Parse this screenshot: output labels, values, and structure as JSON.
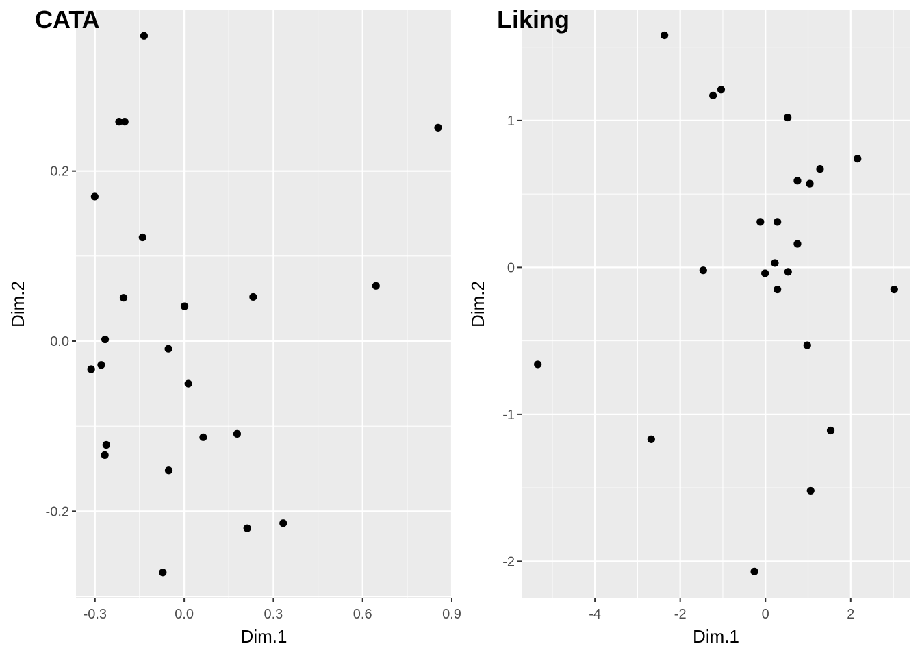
{
  "chart_data": [
    {
      "type": "scatter",
      "title": "CATA",
      "xlabel": "Dim.1",
      "ylabel": "Dim.2",
      "xlim": [
        -0.364,
        0.9
      ],
      "ylim": [
        -0.302,
        0.389
      ],
      "xticks": [
        "-0.3",
        "0.0",
        "0.3",
        "0.6",
        "0.9"
      ],
      "yticks": [
        "-0.2",
        "0.0",
        "0.2"
      ],
      "grid": true,
      "point_color": "#000000",
      "panel_background": "#ebebeb",
      "points": [
        {
          "x": -0.135,
          "y": 0.359
        },
        {
          "x": -0.219,
          "y": 0.258
        },
        {
          "x": -0.2,
          "y": 0.258
        },
        {
          "x": 0.854,
          "y": 0.251
        },
        {
          "x": -0.301,
          "y": 0.17
        },
        {
          "x": -0.14,
          "y": 0.122
        },
        {
          "x": 0.645,
          "y": 0.065
        },
        {
          "x": -0.204,
          "y": 0.051
        },
        {
          "x": 0.232,
          "y": 0.052
        },
        {
          "x": 0.001,
          "y": 0.041
        },
        {
          "x": -0.266,
          "y": 0.002
        },
        {
          "x": -0.053,
          "y": -0.009
        },
        {
          "x": -0.279,
          "y": -0.028
        },
        {
          "x": -0.313,
          "y": -0.033
        },
        {
          "x": 0.014,
          "y": -0.05
        },
        {
          "x": 0.064,
          "y": -0.113
        },
        {
          "x": 0.178,
          "y": -0.109
        },
        {
          "x": -0.262,
          "y": -0.122
        },
        {
          "x": -0.267,
          "y": -0.134
        },
        {
          "x": -0.052,
          "y": -0.152
        },
        {
          "x": 0.212,
          "y": -0.22
        },
        {
          "x": 0.333,
          "y": -0.214
        },
        {
          "x": -0.072,
          "y": -0.272
        }
      ]
    },
    {
      "type": "scatter",
      "title": "Liking",
      "xlabel": "Dim.1",
      "ylabel": "Dim.2",
      "xlim": [
        -5.72,
        3.4
      ],
      "ylim": [
        -2.25,
        1.75
      ],
      "xticks": [
        "-4",
        "-2",
        "0",
        "2"
      ],
      "yticks": [
        "-2",
        "-1",
        "0",
        "1"
      ],
      "grid": true,
      "point_color": "#000000",
      "panel_background": "#ebebeb",
      "points": [
        {
          "x": -2.37,
          "y": 1.58
        },
        {
          "x": -1.04,
          "y": 1.21
        },
        {
          "x": -1.23,
          "y": 1.17
        },
        {
          "x": 0.52,
          "y": 1.02
        },
        {
          "x": 2.16,
          "y": 0.74
        },
        {
          "x": 1.28,
          "y": 0.67
        },
        {
          "x": 0.75,
          "y": 0.59
        },
        {
          "x": 1.04,
          "y": 0.57
        },
        {
          "x": -0.12,
          "y": 0.31
        },
        {
          "x": 0.28,
          "y": 0.31
        },
        {
          "x": 0.75,
          "y": 0.16
        },
        {
          "x": 0.22,
          "y": 0.03
        },
        {
          "x": -1.46,
          "y": -0.02
        },
        {
          "x": -0.01,
          "y": -0.04
        },
        {
          "x": 0.53,
          "y": -0.03
        },
        {
          "x": 0.28,
          "y": -0.15
        },
        {
          "x": 3.02,
          "y": -0.15
        },
        {
          "x": 0.98,
          "y": -0.53
        },
        {
          "x": -5.34,
          "y": -0.66
        },
        {
          "x": -2.68,
          "y": -1.17
        },
        {
          "x": 1.53,
          "y": -1.11
        },
        {
          "x": 1.06,
          "y": -1.52
        },
        {
          "x": -0.26,
          "y": -2.07
        }
      ]
    }
  ]
}
